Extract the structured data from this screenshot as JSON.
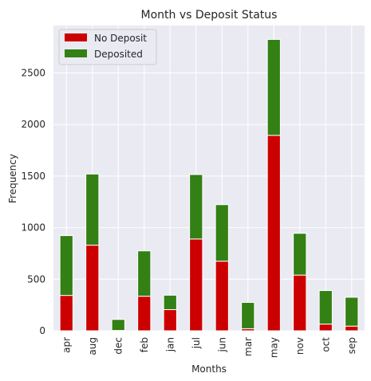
{
  "chart_data": {
    "type": "bar",
    "stacked": true,
    "title": "Month vs Deposit Status",
    "xlabel": "Months",
    "ylabel": "Frequency",
    "categories": [
      "apr",
      "aug",
      "dec",
      "feb",
      "jan",
      "jul",
      "jun",
      "mar",
      "may",
      "nov",
      "oct",
      "sep"
    ],
    "series": [
      {
        "name": "No Deposit",
        "color": "#cc0000",
        "values": [
          343,
          830,
          3,
          335,
          205,
          890,
          675,
          20,
          1895,
          540,
          65,
          45
        ]
      },
      {
        "name": "Deposited",
        "color": "#338015",
        "values": [
          580,
          690,
          107,
          440,
          140,
          625,
          548,
          255,
          930,
          405,
          325,
          280
        ]
      }
    ],
    "ylim": [
      0,
      2960
    ],
    "yticks": [
      0,
      500,
      1000,
      1500,
      2000,
      2500
    ],
    "grid": true,
    "legend_position": "top-left",
    "background_color": "#eaeaf2",
    "grid_color": "#ffffff"
  }
}
